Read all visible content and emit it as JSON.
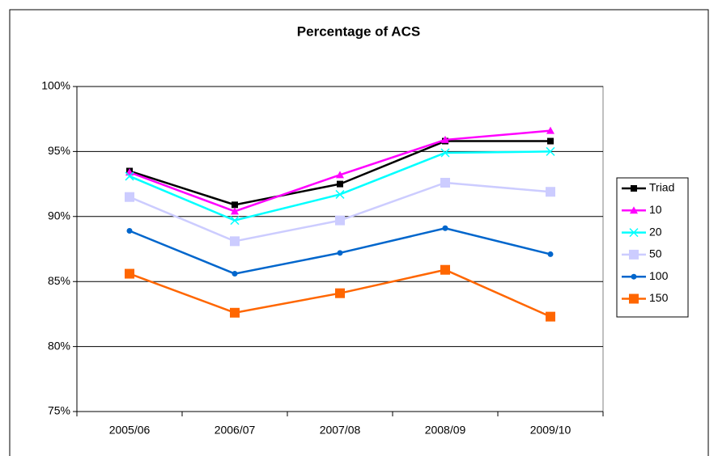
{
  "chart_data": {
    "type": "line",
    "title": "Percentage of ACS",
    "categories": [
      "2005/06",
      "2006/07",
      "2007/08",
      "2008/09",
      "2009/10"
    ],
    "series": [
      {
        "name": "Triad",
        "color": "#000000",
        "marker": "square",
        "values": [
          93.5,
          90.9,
          92.5,
          95.8,
          95.8
        ]
      },
      {
        "name": "10",
        "color": "#ff00ff",
        "marker": "triangle",
        "values": [
          93.4,
          90.4,
          93.2,
          95.9,
          96.6
        ]
      },
      {
        "name": "20",
        "color": "#00ffff",
        "marker": "x",
        "values": [
          93.1,
          89.7,
          91.7,
          94.9,
          95.0
        ]
      },
      {
        "name": "50",
        "color": "#ccccff",
        "marker": "square",
        "values": [
          91.5,
          88.1,
          89.7,
          92.6,
          91.9
        ]
      },
      {
        "name": "100",
        "color": "#0066cc",
        "marker": "circle",
        "values": [
          88.9,
          85.6,
          87.2,
          89.1,
          87.1
        ]
      },
      {
        "name": "150",
        "color": "#ff6600",
        "marker": "square",
        "values": [
          85.6,
          82.6,
          84.1,
          85.9,
          82.3
        ]
      }
    ],
    "ylim": [
      75,
      100
    ],
    "yticks": [
      {
        "value": 75,
        "label": "75%"
      },
      {
        "value": 80,
        "label": "80%"
      },
      {
        "value": 85,
        "label": "85%"
      },
      {
        "value": 90,
        "label": "90%"
      },
      {
        "value": 95,
        "label": "95%"
      },
      {
        "value": 100,
        "label": "100%"
      }
    ],
    "grid": true,
    "legend": "right"
  }
}
